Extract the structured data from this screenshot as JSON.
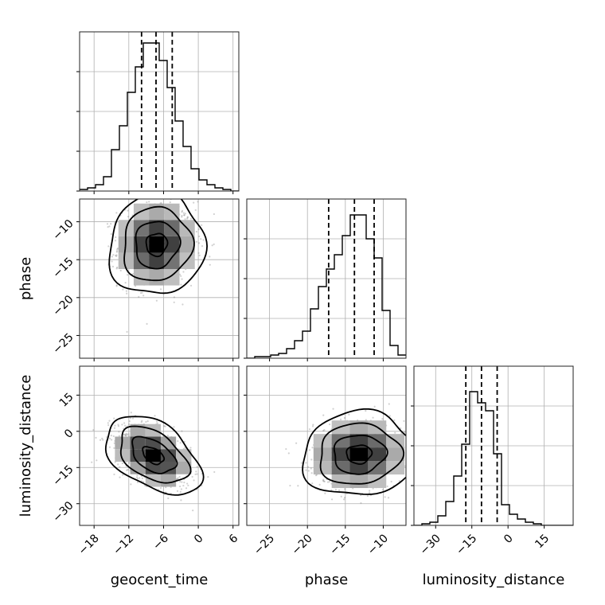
{
  "chart_data": {
    "type": "corner",
    "parameters": [
      "geocent_time",
      "phase",
      "luminosity_distance"
    ],
    "axes": {
      "geocent_time": {
        "range": [
          -20.5,
          7
        ],
        "ticks": [
          -18,
          -12,
          -6,
          0,
          6
        ],
        "tick_labels": [
          "−18",
          "−12",
          "−6",
          "0",
          "6"
        ]
      },
      "phase": {
        "range": [
          -28,
          -7
        ],
        "ticks": [
          -25,
          -20,
          -15,
          -10
        ],
        "tick_labels": [
          "−25",
          "−20",
          "−15",
          "−10"
        ]
      },
      "luminosity_distance": {
        "range": [
          -39,
          27
        ],
        "ticks": [
          -30,
          -15,
          0,
          15
        ],
        "tick_labels": [
          "−30",
          "−15",
          "0",
          "15"
        ]
      }
    },
    "grid": true,
    "diagonal": [
      {
        "parameter": "geocent_time",
        "bin_edges": [
          -20.5,
          -19.125,
          -17.75,
          -16.375,
          -15,
          -13.625,
          -12.25,
          -10.875,
          -9.5,
          -8.125,
          -6.75,
          -5.375,
          -4,
          -2.625,
          -1.25,
          0.125,
          1.5,
          2.875,
          4.25,
          5.625,
          7
        ],
        "counts": [
          0.01,
          0.02,
          0.04,
          0.09,
          0.26,
          0.41,
          0.62,
          0.78,
          0.93,
          0.93,
          0.82,
          0.65,
          0.44,
          0.28,
          0.14,
          0.07,
          0.04,
          0.02,
          0.01,
          0.0
        ],
        "ymax": 1.0,
        "quantiles": [
          -9.8,
          -7.3,
          -4.5
        ]
      },
      {
        "parameter": "phase",
        "bin_edges": [
          -28,
          -26.95,
          -25.9,
          -24.85,
          -23.8,
          -22.75,
          -21.7,
          -20.65,
          -19.6,
          -18.55,
          -17.5,
          -16.45,
          -15.4,
          -14.35,
          -13.3,
          -12.25,
          -11.2,
          -10.15,
          -9.1,
          -8.05,
          -7
        ],
        "counts": [
          0.0,
          0.01,
          0.01,
          0.02,
          0.03,
          0.06,
          0.11,
          0.17,
          0.31,
          0.45,
          0.56,
          0.65,
          0.77,
          0.9,
          0.9,
          0.75,
          0.63,
          0.3,
          0.08,
          0.02
        ],
        "ymax": 1.0,
        "quantiles": [
          -17.2,
          -13.8,
          -11.2
        ]
      },
      {
        "parameter": "luminosity_distance",
        "bin_edges": [
          -39,
          -35.7,
          -32.4,
          -29.1,
          -25.8,
          -22.5,
          -19.2,
          -15.9,
          -12.6,
          -9.3,
          -6,
          -2.7,
          0.6,
          3.9,
          7.2,
          10.5,
          13.8,
          17.1,
          20.4,
          23.7,
          27
        ],
        "counts": [
          0.0,
          0.01,
          0.02,
          0.06,
          0.15,
          0.31,
          0.51,
          0.84,
          0.77,
          0.72,
          0.45,
          0.13,
          0.07,
          0.04,
          0.02,
          0.01,
          0.0,
          0.0,
          0.0,
          0.0
        ],
        "ymax": 1.0,
        "quantiles": [
          -17.5,
          -11.0,
          -4.5
        ]
      }
    ],
    "pairs": [
      {
        "x": "geocent_time",
        "y": "phase",
        "center": [
          -7.2,
          -13.0
        ],
        "spread": [
          3.3,
          2.7
        ],
        "rho": 0.05,
        "levels": [
          0.55,
          1.15,
          1.8,
          2.5
        ]
      },
      {
        "x": "geocent_time",
        "y": "luminosity_distance",
        "center": [
          -7.8,
          -10.0
        ],
        "spread": [
          3.3,
          6.5
        ],
        "rho": -0.45,
        "levels": [
          0.55,
          1.15,
          1.8,
          2.5
        ]
      },
      {
        "x": "phase",
        "y": "luminosity_distance",
        "center": [
          -13.2,
          -9.5
        ],
        "spread": [
          3.0,
          7.0
        ],
        "rho": 0.05,
        "levels": [
          0.55,
          1.15,
          1.8,
          2.5
        ]
      }
    ]
  }
}
